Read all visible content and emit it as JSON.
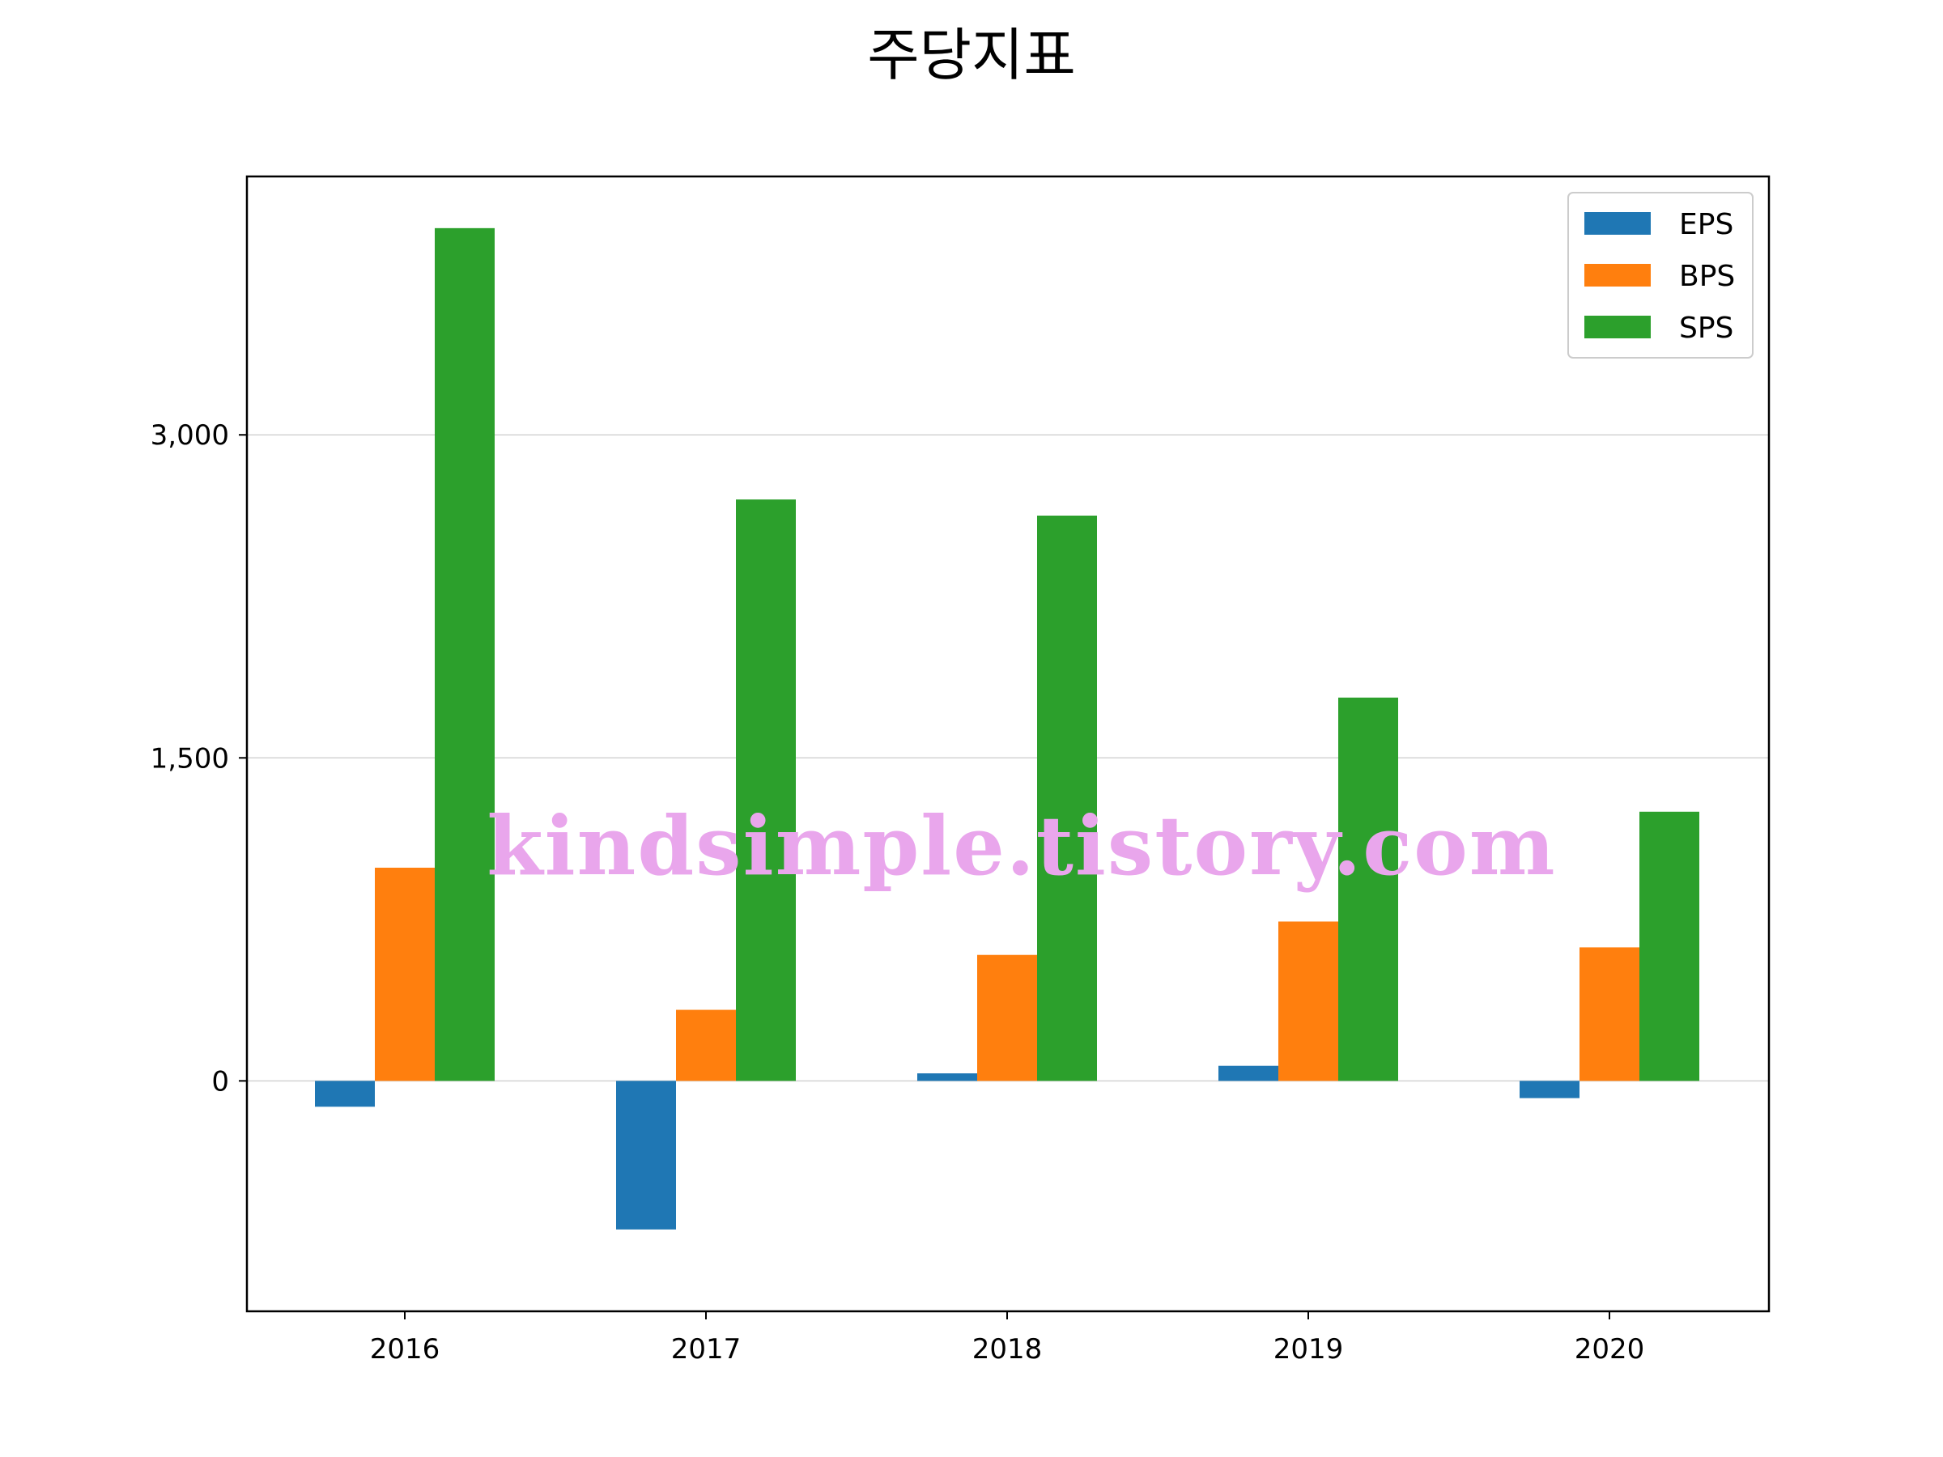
{
  "chart_data": {
    "type": "bar",
    "title": "주당지표",
    "xlabel": "",
    "ylabel": "",
    "categories": [
      "2016",
      "2017",
      "2018",
      "2019",
      "2020"
    ],
    "series": [
      {
        "name": "EPS",
        "color": "#1f77b4",
        "values": [
          -120,
          -690,
          35,
          70,
          -80
        ]
      },
      {
        "name": "BPS",
        "color": "#ff7f0e",
        "values": [
          990,
          330,
          585,
          740,
          620
        ]
      },
      {
        "name": "SPS",
        "color": "#2ca02c",
        "values": [
          3960,
          2700,
          2625,
          1780,
          1250
        ]
      }
    ],
    "ylim": [
      -1070,
      4200
    ],
    "yticks": [
      0,
      1500,
      3000
    ],
    "ytick_labels": [
      "0",
      "1,500",
      "3,000"
    ],
    "grid": "horizontal",
    "legend_position": "top-right",
    "watermark": "kindsimple.tistory.com"
  }
}
